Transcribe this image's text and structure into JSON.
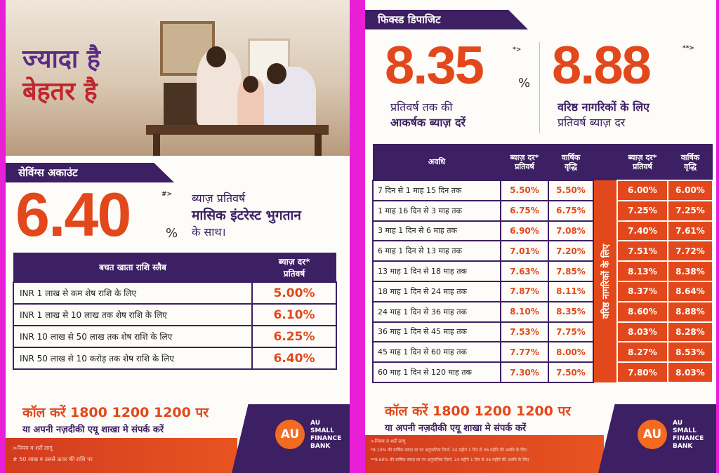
{
  "left": {
    "headline_line1": "ज्यादा है",
    "headline_line2": "बेहतर है",
    "section_title": "सेविंग्स अकाउंट",
    "rate": "6.40",
    "rate_sup": "#>",
    "rate_pct": "%",
    "rate_desc_1": "ब्याज़ प्रतिवर्ष",
    "rate_desc_2": "मासिक इंटरेस्ट भुगतान",
    "rate_desc_3": "के साथ।",
    "table_header_col1": "बचत खाता राशि स्लैब",
    "table_header_col2_line1": "ब्याज़ दर*",
    "table_header_col2_line2": "प्रतिवर्ष",
    "rows": [
      {
        "slab": "INR 1 लाख से कम शेष राशि के लिए",
        "rate": "5.00%"
      },
      {
        "slab": "INR 1 लाख से 10 लाख तक शेष राशि के लिए",
        "rate": "6.10%"
      },
      {
        "slab": "INR 10 लाख से 50 लाख तक शेष राशि  के लिए",
        "rate": "6.25%"
      },
      {
        "slab": "INR 50 लाख से 10 करोड़ तक शेष राशि के लिए",
        "rate": "6.40%"
      }
    ],
    "cta_line1": "कॉल करें 1800 1200 1200 पर",
    "cta_line2": "या अपनी नज़दीकी एयू शाखा मे संपर्क करें",
    "footnote1": ">नियम व शर्तें लागू",
    "footnote2": "# 50 लाख व उससे ऊपर की राशि पर"
  },
  "right": {
    "section_title": "फिक्स्ड डिपाजिट",
    "rate1": "8.35",
    "rate1_sup": "*>",
    "rate1_pct": "%",
    "rate1_desc_1": "प्रतिवर्ष तक की",
    "rate1_desc_2": "आकर्षक ब्याज़ दरें",
    "rate2": "8.88",
    "rate2_sup": "**>",
    "rate2_desc_1": "वरिष्ठ नागरिकों के लिए",
    "rate2_desc_2": "प्रतिवर्ष ब्याज़ दर",
    "header_period": "अवधि",
    "header_rate_1": "ब्याज़ दर*",
    "header_rate_2": "प्रतिवर्ष",
    "header_yield_1": "वार्षिक",
    "header_yield_2": "वृद्धि",
    "senior_label": "वरिष्ठ नागरिकों के लिए",
    "rows": [
      {
        "period": "7 दिन से 1 माह 15 दिन तक",
        "rate": "5.50%",
        "yield": "5.50%",
        "s_rate": "6.00%",
        "s_yield": "6.00%"
      },
      {
        "period": "1 माह 16 दिन से 3 माह तक",
        "rate": "6.75%",
        "yield": "6.75%",
        "s_rate": "7.25%",
        "s_yield": "7.25%"
      },
      {
        "period": "3 माह 1 दिन से 6 माह तक",
        "rate": "6.90%",
        "yield": "7.08%",
        "s_rate": "7.40%",
        "s_yield": "7.61%"
      },
      {
        "period": "6 माह 1 दिन से 13 माह तक",
        "rate": "7.01%",
        "yield": "7.20%",
        "s_rate": "7.51%",
        "s_yield": "7.72%"
      },
      {
        "period": "13 माह 1 दिन से 18 माह तक",
        "rate": "7.63%",
        "yield": "7.85%",
        "s_rate": "8.13%",
        "s_yield": "8.38%"
      },
      {
        "period": "18 माह 1 दिन से 24 माह तक",
        "rate": "7.87%",
        "yield": "8.11%",
        "s_rate": "8.37%",
        "s_yield": "8.64%"
      },
      {
        "period": "24 माह 1 दिन से 36 माह तक",
        "rate": "8.10%",
        "yield": "8.35%",
        "s_rate": "8.60%",
        "s_yield": "8.88%"
      },
      {
        "period": "36 माह 1 दिन से 45 माह तक",
        "rate": "7.53%",
        "yield": "7.75%",
        "s_rate": "8.03%",
        "s_yield": "8.28%"
      },
      {
        "period": "45 माह 1 दिन से 60 माह तक",
        "rate": "7.77%",
        "yield": "8.00%",
        "s_rate": "8.27%",
        "s_yield": "8.53%"
      },
      {
        "period": "60 माह 1 दिन से 120 माह तक",
        "rate": "7.30%",
        "yield": "7.50%",
        "s_rate": "7.80%",
        "s_yield": "8.03%"
      }
    ],
    "cta_line1": "कॉल करें 1800 1200 1200 पर",
    "cta_line2": "या अपनी नज़दीकी एयू शाखा मे संपर्क करें",
    "footnote1": ">नियम व शर्तें लागू",
    "footnote2": "*8.10% की वार्षिक ब्याज़ दर पर अनुपातिक रिटर्न, 24 महीने 1 दिन से 36 महीने की अवधि के लिए",
    "footnote3": "**8.60% की वार्षिक ब्याज़ दर पर अनुपातिक रिटर्न, 24 महीने 1 दिन से 36 महीने की अवधि के लिए"
  },
  "brand": {
    "logo_text": "AU",
    "name_line1": "AU",
    "name_line2": "SMALL",
    "name_line3": "FINANCE",
    "name_line4": "BANK"
  }
}
